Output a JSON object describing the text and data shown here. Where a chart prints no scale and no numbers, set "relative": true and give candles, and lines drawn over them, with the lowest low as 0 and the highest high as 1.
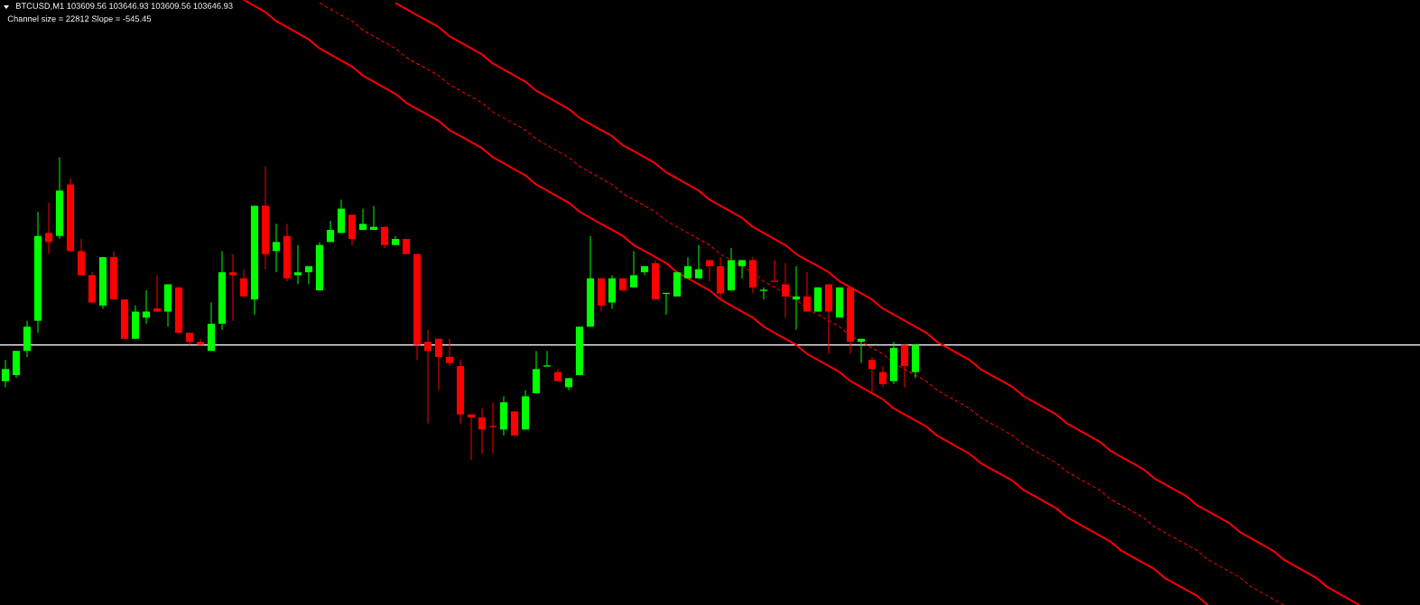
{
  "chart_data": {
    "type": "candlestick",
    "relative": true,
    "title": "BTCUSD,M1  103609.56 103646.93 103609.56 103646.93",
    "subtitle": "Channel size = 22812 Slope = -545.45",
    "categories": [
      null,
      null,
      null,
      null,
      null,
      null,
      null,
      null,
      null,
      null,
      null,
      null,
      null,
      null,
      null,
      null,
      null,
      null,
      null,
      null,
      null,
      null,
      null,
      null,
      null,
      null,
      null,
      null,
      null,
      null,
      null,
      null,
      null,
      null,
      null,
      null,
      null,
      null,
      null,
      null,
      null,
      null,
      null,
      null,
      null,
      null,
      null,
      null,
      null,
      null,
      null,
      null,
      null,
      null,
      null,
      null,
      null,
      null,
      null,
      null,
      null,
      null,
      null,
      null,
      null,
      null,
      null,
      null,
      null,
      null,
      null,
      null,
      null,
      null,
      null,
      null,
      null,
      null,
      null,
      null,
      null,
      null,
      null,
      null,
      null,
      null,
      null,
      null,
      null,
      null,
      null,
      null,
      null,
      null,
      null,
      null,
      null,
      null,
      null,
      null,
      null,
      null,
      null,
      null,
      null,
      null,
      null,
      null,
      null,
      null,
      null,
      null,
      null,
      null,
      null,
      null,
      null,
      null,
      null,
      null,
      null,
      null,
      null,
      null,
      null,
      null,
      null,
      null,
      null,
      null,
      null
    ],
    "ohlc": [
      [
        0.26,
        0.33,
        0.24,
        0.3
      ],
      [
        0.28,
        0.36,
        0.27,
        0.36
      ],
      [
        0.36,
        0.46,
        0.34,
        0.44
      ],
      [
        0.46,
        0.82,
        0.42,
        0.74
      ],
      [
        0.75,
        0.85,
        0.68,
        0.72
      ],
      [
        0.74,
        1.0,
        0.73,
        0.89
      ],
      [
        0.91,
        0.93,
        0.69,
        0.69
      ],
      [
        0.69,
        0.73,
        0.61,
        0.61
      ],
      [
        0.61,
        0.62,
        0.52,
        0.52
      ],
      [
        0.51,
        0.67,
        0.5,
        0.67
      ],
      [
        0.67,
        0.69,
        0.53,
        0.53
      ],
      [
        0.53,
        0.53,
        0.4,
        0.4
      ],
      [
        0.4,
        0.51,
        0.4,
        0.49
      ],
      [
        0.47,
        0.56,
        0.45,
        0.49
      ],
      [
        0.5,
        0.61,
        0.49,
        0.49
      ],
      [
        0.49,
        0.58,
        0.44,
        0.58
      ],
      [
        0.57,
        0.57,
        0.42,
        0.42
      ],
      [
        0.42,
        0.42,
        0.38,
        0.39
      ],
      [
        0.39,
        0.4,
        0.38,
        0.38
      ],
      [
        0.36,
        0.52,
        0.36,
        0.45
      ],
      [
        0.45,
        0.69,
        0.43,
        0.62
      ],
      [
        0.62,
        0.68,
        0.46,
        0.61
      ],
      [
        0.6,
        0.63,
        0.54,
        0.54
      ],
      [
        0.53,
        0.84,
        0.48,
        0.84
      ],
      [
        0.84,
        0.97,
        0.63,
        0.68
      ],
      [
        0.69,
        0.78,
        0.62,
        0.72
      ],
      [
        0.74,
        0.78,
        0.59,
        0.6
      ],
      [
        0.61,
        0.71,
        0.58,
        0.62
      ],
      [
        0.62,
        0.64,
        0.58,
        0.64
      ],
      [
        0.56,
        0.72,
        0.56,
        0.71
      ],
      [
        0.72,
        0.79,
        0.72,
        0.76
      ],
      [
        0.75,
        0.86,
        0.75,
        0.83
      ],
      [
        0.81,
        0.81,
        0.71,
        0.73
      ],
      [
        0.76,
        0.83,
        0.76,
        0.78
      ],
      [
        0.76,
        0.84,
        0.76,
        0.77
      ],
      [
        0.77,
        0.77,
        0.7,
        0.71
      ],
      [
        0.71,
        0.74,
        0.71,
        0.73
      ],
      [
        0.73,
        0.73,
        0.68,
        0.68
      ],
      [
        0.68,
        0.68,
        0.33,
        0.38
      ],
      [
        0.39,
        0.43,
        0.12,
        0.36
      ],
      [
        0.4,
        0.4,
        0.23,
        0.34
      ],
      [
        0.34,
        0.4,
        0.31,
        0.32
      ],
      [
        0.31,
        0.33,
        0.12,
        0.15
      ],
      [
        0.15,
        0.15,
        0.0,
        0.14
      ],
      [
        0.14,
        0.17,
        0.02,
        0.1
      ],
      [
        0.11,
        0.19,
        0.02,
        0.11
      ],
      [
        0.1,
        0.21,
        0.08,
        0.19
      ],
      [
        0.16,
        0.16,
        0.08,
        0.08
      ],
      [
        0.1,
        0.23,
        0.1,
        0.21
      ],
      [
        0.22,
        0.36,
        0.22,
        0.3
      ],
      [
        0.31,
        0.36,
        0.31,
        0.31
      ],
      [
        0.29,
        0.3,
        0.26,
        0.26
      ],
      [
        0.24,
        0.27,
        0.23,
        0.27
      ],
      [
        0.28,
        0.44,
        0.28,
        0.44
      ],
      [
        0.44,
        0.74,
        0.44,
        0.6
      ],
      [
        0.6,
        0.6,
        0.49,
        0.51
      ],
      [
        0.52,
        0.61,
        0.5,
        0.6
      ],
      [
        0.6,
        0.6,
        0.56,
        0.56
      ],
      [
        0.57,
        0.69,
        0.57,
        0.61
      ],
      [
        0.62,
        0.64,
        0.61,
        0.64
      ],
      [
        0.65,
        0.66,
        0.53,
        0.53
      ],
      [
        0.55,
        0.55,
        0.48,
        0.55
      ],
      [
        0.54,
        0.62,
        0.54,
        0.62
      ],
      [
        0.6,
        0.67,
        0.6,
        0.64
      ],
      [
        0.6,
        0.71,
        0.6,
        0.63
      ],
      [
        0.66,
        0.66,
        0.59,
        0.64
      ],
      [
        0.64,
        0.67,
        0.53,
        0.55
      ],
      [
        0.56,
        0.7,
        0.56,
        0.66
      ],
      [
        0.64,
        0.66,
        0.6,
        0.66
      ],
      [
        0.66,
        0.67,
        0.55,
        0.57
      ],
      [
        0.56,
        0.57,
        0.53,
        0.56
      ],
      [
        0.59,
        0.66,
        0.59,
        0.59
      ],
      [
        0.58,
        0.65,
        0.47,
        0.54
      ],
      [
        0.53,
        0.64,
        0.43,
        0.54
      ],
      [
        0.54,
        0.62,
        0.49,
        0.49
      ],
      [
        0.49,
        0.57,
        0.49,
        0.57
      ],
      [
        0.58,
        0.58,
        0.35,
        0.49
      ],
      [
        0.47,
        0.57,
        0.47,
        0.57
      ],
      [
        0.57,
        0.57,
        0.35,
        0.39
      ],
      [
        0.39,
        0.4,
        0.32,
        0.4
      ],
      [
        0.33,
        0.34,
        0.22,
        0.3
      ],
      [
        0.29,
        0.31,
        0.24,
        0.25
      ],
      [
        0.26,
        0.39,
        0.25,
        0.37
      ],
      [
        0.38,
        0.38,
        0.24,
        0.31
      ],
      [
        0.29,
        0.38,
        0.27,
        0.38
      ],
      null,
      null,
      null,
      null,
      null,
      null,
      null,
      null,
      null,
      null,
      null,
      null,
      null,
      null,
      null,
      null,
      null,
      null,
      null,
      null,
      null,
      null,
      null,
      null,
      null,
      null,
      null,
      null,
      null,
      null,
      null,
      null,
      null,
      null,
      null,
      null,
      null,
      null,
      null,
      null,
      null,
      null,
      null,
      null,
      null,
      null
    ],
    "colors": [
      "#00ff00",
      "#00ff00",
      "#00ff00",
      "#00ff00",
      "#ff0000",
      "#00ff00",
      "#ff0000",
      "#ff0000",
      "#ff0000",
      "#00ff00",
      "#ff0000",
      "#ff0000",
      "#00ff00",
      "#00ff00",
      "#ff0000",
      "#00ff00",
      "#ff0000",
      "#ff0000",
      "#ff0000",
      "#00ff00",
      "#00ff00",
      "#ff0000",
      "#ff0000",
      "#00ff00",
      "#ff0000",
      "#00ff00",
      "#ff0000",
      "#00ff00",
      "#00ff00",
      "#00ff00",
      "#00ff00",
      "#00ff00",
      "#ff0000",
      "#00ff00",
      "#00ff00",
      "#ff0000",
      "#00ff00",
      "#ff0000",
      "#ff0000",
      "#ff0000",
      "#ff0000",
      "#ff0000",
      "#ff0000",
      "#ff0000",
      "#ff0000",
      "#ff0000",
      "#00ff00",
      "#ff0000",
      "#00ff00",
      "#00ff00",
      "#00ff00",
      "#ff0000",
      "#00ff00",
      "#00ff00",
      "#00ff00",
      "#ff0000",
      "#00ff00",
      "#ff0000",
      "#00ff00",
      "#00ff00",
      "#ff0000",
      "#00ff00",
      "#00ff00",
      "#00ff00",
      "#00ff00",
      "#ff0000",
      "#ff0000",
      "#00ff00",
      "#00ff00",
      "#ff0000",
      "#00ff00",
      "#ff0000",
      "#ff0000",
      "#00ff00",
      "#ff0000",
      "#00ff00",
      "#ff0000",
      "#00ff00",
      "#ff0000",
      "#00ff00",
      "#ff0000",
      "#ff0000",
      "#00ff00",
      "#ff0000",
      "#00ff00",
      null,
      null,
      null,
      null,
      null,
      null,
      null,
      null,
      null,
      null,
      null,
      null,
      null,
      null,
      null,
      null,
      null,
      null,
      null,
      null,
      null,
      null,
      null,
      null,
      null,
      null,
      null,
      null,
      null,
      null,
      null,
      null,
      null,
      null,
      null,
      null,
      null,
      null,
      null,
      null,
      null,
      null,
      null,
      null,
      null,
      null
    ],
    "series": [
      {
        "type": "line",
        "values": [
          null,
          null,
          null,
          null,
          null,
          null,
          null,
          null,
          null,
          null,
          null,
          null,
          null,
          null,
          null,
          null,
          null,
          null,
          null,
          null,
          null,
          null,
          null,
          null,
          null,
          null,
          null,
          null,
          null,
          null,
          null,
          null,
          null,
          null,
          null,
          null,
          1.51,
          1.49,
          1.47,
          1.45,
          1.43,
          1.4,
          1.38,
          1.36,
          1.34,
          1.31,
          1.29,
          1.27,
          1.25,
          1.22,
          1.2,
          1.18,
          1.16,
          1.13,
          1.11,
          1.09,
          1.07,
          1.04,
          1.02,
          1.0,
          0.98,
          0.95,
          0.93,
          0.91,
          0.89,
          0.86,
          0.84,
          0.82,
          0.8,
          0.77,
          0.75,
          0.73,
          0.71,
          0.68,
          0.66,
          0.64,
          0.62,
          0.59,
          0.57,
          0.55,
          0.53,
          0.5,
          0.48,
          0.46,
          0.44,
          0.42,
          0.39,
          0.37,
          0.35,
          0.33,
          0.3,
          0.28,
          0.26,
          0.24,
          0.21,
          0.19,
          0.17,
          0.15,
          0.12,
          0.1,
          0.08,
          0.06,
          0.03,
          0.01,
          -0.01,
          -0.03,
          -0.06,
          -0.08,
          -0.1,
          -0.12,
          -0.15,
          -0.17,
          -0.19,
          -0.21,
          -0.24,
          -0.26,
          -0.28,
          -0.3,
          -0.33,
          -0.35,
          -0.37,
          -0.39,
          -0.42,
          -0.44,
          -0.46,
          -0.48,
          null,
          null,
          null,
          null,
          null
        ],
        "color": "#ff0000",
        "line_style": "solid"
      },
      {
        "type": "line",
        "values": [
          null,
          null,
          null,
          null,
          null,
          null,
          null,
          null,
          null,
          null,
          null,
          null,
          null,
          null,
          null,
          null,
          null,
          null,
          null,
          null,
          null,
          null,
          null,
          null,
          null,
          null,
          null,
          null,
          null,
          1.51,
          1.49,
          1.47,
          1.45,
          1.42,
          1.4,
          1.38,
          1.36,
          1.33,
          1.31,
          1.29,
          1.27,
          1.24,
          1.22,
          1.2,
          1.18,
          1.15,
          1.13,
          1.11,
          1.09,
          1.06,
          1.04,
          1.02,
          1.0,
          0.97,
          0.95,
          0.93,
          0.91,
          0.88,
          0.86,
          0.84,
          0.82,
          0.79,
          0.77,
          0.75,
          0.73,
          0.71,
          0.68,
          0.66,
          0.64,
          0.62,
          0.59,
          0.57,
          0.55,
          0.53,
          0.5,
          0.48,
          0.46,
          0.44,
          0.41,
          0.39,
          0.37,
          0.35,
          0.32,
          0.3,
          0.28,
          0.26,
          0.23,
          0.21,
          0.19,
          0.17,
          0.14,
          0.12,
          0.1,
          0.08,
          0.05,
          0.03,
          0.01,
          -0.01,
          -0.04,
          -0.06,
          -0.08,
          -0.1,
          -0.13,
          -0.15,
          -0.17,
          -0.19,
          -0.22,
          -0.24,
          -0.26,
          -0.28,
          -0.3,
          -0.33,
          -0.35,
          -0.37,
          -0.39,
          -0.42,
          -0.44,
          -0.46,
          -0.48,
          null,
          null,
          null,
          null,
          null,
          null,
          null,
          null,
          null,
          null,
          null,
          null
        ],
        "color": "#ff0000",
        "line_style": "dashed"
      },
      {
        "type": "line",
        "values": [
          null,
          null,
          null,
          null,
          null,
          null,
          null,
          null,
          null,
          null,
          null,
          null,
          null,
          null,
          null,
          null,
          null,
          null,
          null,
          null,
          null,
          null,
          1.52,
          1.5,
          1.48,
          1.45,
          1.43,
          1.41,
          1.39,
          1.36,
          1.34,
          1.32,
          1.3,
          1.27,
          1.25,
          1.23,
          1.21,
          1.18,
          1.16,
          1.14,
          1.12,
          1.09,
          1.07,
          1.05,
          1.03,
          1.0,
          0.98,
          0.96,
          0.94,
          0.91,
          0.89,
          0.87,
          0.85,
          0.82,
          0.8,
          0.78,
          0.76,
          0.74,
          0.71,
          0.69,
          0.67,
          0.65,
          0.62,
          0.6,
          0.58,
          0.56,
          0.53,
          0.51,
          0.49,
          0.47,
          0.44,
          0.42,
          0.4,
          0.38,
          0.35,
          0.33,
          0.31,
          0.29,
          0.26,
          0.24,
          0.22,
          0.2,
          0.17,
          0.15,
          0.13,
          0.11,
          0.08,
          0.06,
          0.04,
          0.02,
          -0.01,
          -0.03,
          -0.05,
          -0.07,
          -0.1,
          -0.12,
          -0.14,
          -0.16,
          -0.19,
          -0.21,
          -0.23,
          -0.25,
          -0.27,
          -0.3,
          -0.32,
          -0.34,
          -0.36,
          -0.39,
          -0.41,
          -0.43,
          -0.45,
          -0.48,
          null,
          null,
          null,
          null,
          null,
          null,
          null,
          null,
          null,
          null,
          null,
          null,
          null,
          null,
          null,
          null,
          null,
          null,
          null
        ],
        "color": "#ff0000",
        "line_style": "solid"
      }
    ],
    "ref_lines": [
      {
        "axis": "y",
        "value": 0.38,
        "color": "#ffffff"
      }
    ]
  }
}
